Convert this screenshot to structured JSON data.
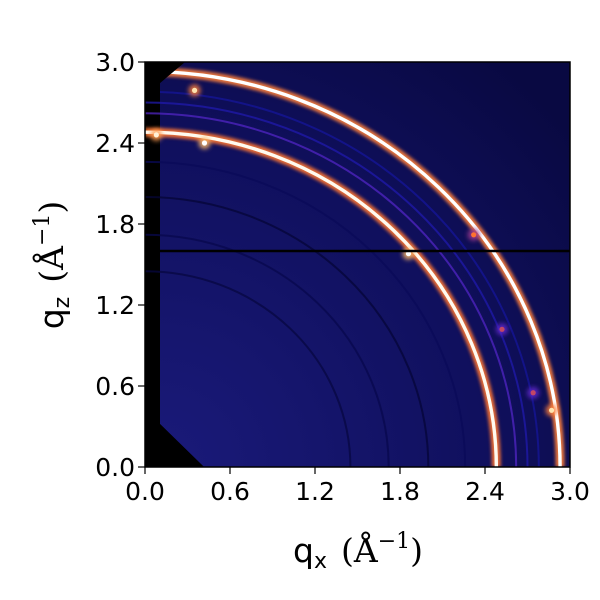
{
  "chart_data": {
    "type": "heatmap",
    "title": "",
    "xlabel": {
      "symbol": "q",
      "subscript": "x",
      "open_paren": "(",
      "unit": "Å",
      "exponent": "−1",
      "close_paren": ")"
    },
    "ylabel": {
      "symbol": "q",
      "subscript": "z",
      "open_paren": "(",
      "unit": "Å",
      "exponent": "−1",
      "close_paren": ")"
    },
    "xlim": [
      0.0,
      3.0
    ],
    "ylim": [
      0.0,
      3.0
    ],
    "xticks": [
      {
        "value": 0.0,
        "label": "0.0"
      },
      {
        "value": 0.6,
        "label": "0.6"
      },
      {
        "value": 1.2,
        "label": "1.2"
      },
      {
        "value": 1.8,
        "label": "1.8"
      },
      {
        "value": 2.4,
        "label": "2.4"
      },
      {
        "value": 3.0,
        "label": "3.0"
      }
    ],
    "yticks": [
      {
        "value": 0.0,
        "label": "0.0"
      },
      {
        "value": 0.6,
        "label": "0.6"
      },
      {
        "value": 1.2,
        "label": "1.2"
      },
      {
        "value": 1.8,
        "label": "1.8"
      },
      {
        "value": 2.4,
        "label": "2.4"
      },
      {
        "value": 3.0,
        "label": "3.0"
      }
    ],
    "grid": false,
    "legend": "none",
    "colormap": [
      "#000000",
      "#0a0a5c",
      "#1818a8",
      "#6a2ad0",
      "#ff5a1e",
      "#ffd27a",
      "#ffffff"
    ],
    "background_color": "#0b0b4a",
    "masked_color": "#000000",
    "detector_gap": {
      "q_z": 1.6
    },
    "rings": [
      {
        "q": 1.45,
        "intensity": 0.12
      },
      {
        "q": 1.72,
        "intensity": 0.14
      },
      {
        "q": 2.0,
        "intensity": 0.1
      },
      {
        "q": 2.26,
        "intensity": 0.16
      },
      {
        "q": 2.48,
        "intensity": 0.98
      },
      {
        "q": 2.62,
        "intensity": 0.45
      },
      {
        "q": 2.7,
        "intensity": 0.35
      },
      {
        "q": 2.78,
        "intensity": 0.3
      },
      {
        "q": 2.93,
        "intensity": 1.0
      }
    ],
    "spots": [
      {
        "q_x": 0.42,
        "q_z": 2.4,
        "intensity": 1.0
      },
      {
        "q_x": 0.08,
        "q_z": 2.46,
        "intensity": 0.95
      },
      {
        "q_x": 0.35,
        "q_z": 2.79,
        "intensity": 0.9
      },
      {
        "q_x": 1.86,
        "q_z": 1.58,
        "intensity": 1.0
      },
      {
        "q_x": 2.32,
        "q_z": 1.72,
        "intensity": 0.7
      },
      {
        "q_x": 2.52,
        "q_z": 1.02,
        "intensity": 0.6
      },
      {
        "q_x": 2.74,
        "q_z": 0.55,
        "intensity": 0.6
      },
      {
        "q_x": 2.87,
        "q_z": 0.42,
        "intensity": 0.9
      }
    ]
  }
}
